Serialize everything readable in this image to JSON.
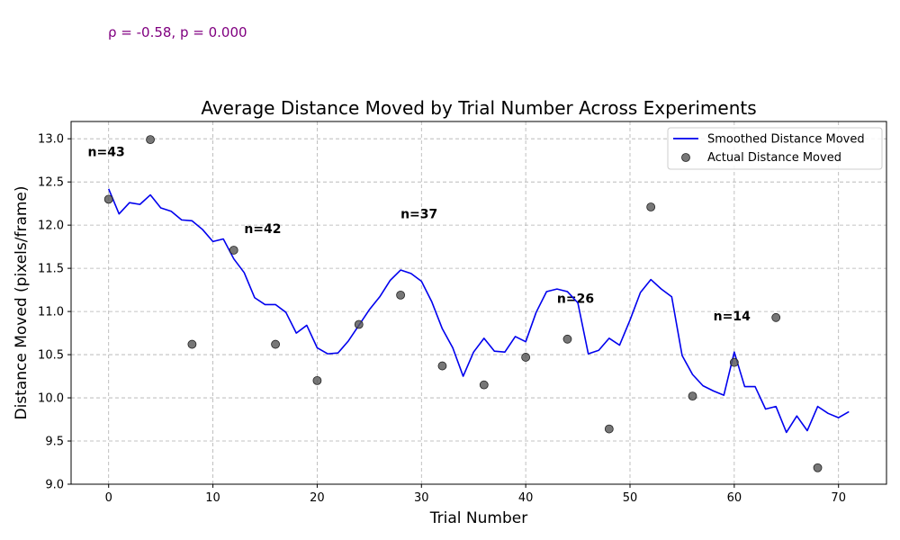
{
  "chart_data": {
    "type": "line",
    "title": "Average Distance Moved by Trial Number Across Experiments",
    "xlabel": "Trial Number",
    "ylabel": "Distance Moved (pixels/frame)",
    "xlim": [
      -3.6,
      74.6
    ],
    "ylim": [
      9.0,
      13.2
    ],
    "x_ticks": [
      0,
      10,
      20,
      30,
      40,
      50,
      60,
      70
    ],
    "y_ticks": [
      9.0,
      9.5,
      10.0,
      10.5,
      11.0,
      11.5,
      12.0,
      12.5,
      13.0
    ],
    "grid": true,
    "legend_position": "top-right",
    "stat_annotation": "ρ = -0.58, p = 0.000",
    "series": [
      {
        "name": "Smoothed Distance Moved",
        "kind": "line",
        "color": "#0000ee",
        "x": [
          0,
          1,
          2,
          3,
          4,
          5,
          6,
          7,
          8,
          9,
          10,
          11,
          12,
          13,
          14,
          15,
          16,
          17,
          18,
          19,
          20,
          21,
          22,
          23,
          24,
          25,
          26,
          27,
          28,
          29,
          30,
          31,
          32,
          33,
          34,
          35,
          36,
          37,
          38,
          39,
          40,
          41,
          42,
          43,
          44,
          45,
          46,
          47,
          48,
          49,
          50,
          51,
          52,
          53,
          54,
          55,
          56,
          57,
          58,
          59,
          60,
          61,
          62,
          63,
          64,
          65,
          66,
          67,
          68,
          69,
          70,
          71
        ],
        "y": [
          12.42,
          12.13,
          12.26,
          12.24,
          12.35,
          12.2,
          12.16,
          12.06,
          12.05,
          11.95,
          11.81,
          11.84,
          11.61,
          11.45,
          11.16,
          11.08,
          11.08,
          10.99,
          10.75,
          10.84,
          10.58,
          10.51,
          10.52,
          10.66,
          10.84,
          11.02,
          11.17,
          11.36,
          11.48,
          11.44,
          11.35,
          11.11,
          10.8,
          10.58,
          10.25,
          10.53,
          10.69,
          10.54,
          10.53,
          10.71,
          10.65,
          10.99,
          11.23,
          11.26,
          11.23,
          11.1,
          10.51,
          10.55,
          10.69,
          10.61,
          10.9,
          11.22,
          11.37,
          11.26,
          11.17,
          10.49,
          10.27,
          10.14,
          10.08,
          10.03,
          10.53,
          10.13,
          10.13,
          9.87,
          9.9,
          9.6,
          9.79,
          9.62,
          9.9,
          9.82,
          9.77,
          9.84
        ]
      },
      {
        "name": "Actual Distance Moved",
        "kind": "scatter",
        "color": "#555555",
        "x": [
          0,
          4,
          8,
          12,
          16,
          20,
          24,
          28,
          32,
          36,
          40,
          44,
          48,
          52,
          56,
          60,
          64,
          68
        ],
        "y": [
          12.3,
          12.99,
          10.62,
          11.71,
          10.62,
          10.2,
          10.85,
          11.19,
          10.37,
          10.15,
          10.47,
          10.68,
          9.64,
          12.21,
          10.02,
          10.41,
          10.93,
          9.19
        ]
      }
    ],
    "annotations": [
      {
        "text": "n=43",
        "x": -2,
        "y": 12.85
      },
      {
        "text": "n=42",
        "x": 13,
        "y": 11.96
      },
      {
        "text": "n=37",
        "x": 28,
        "y": 12.13
      },
      {
        "text": "n=26",
        "x": 43,
        "y": 11.15
      },
      {
        "text": "n=14",
        "x": 58,
        "y": 10.95
      }
    ]
  }
}
